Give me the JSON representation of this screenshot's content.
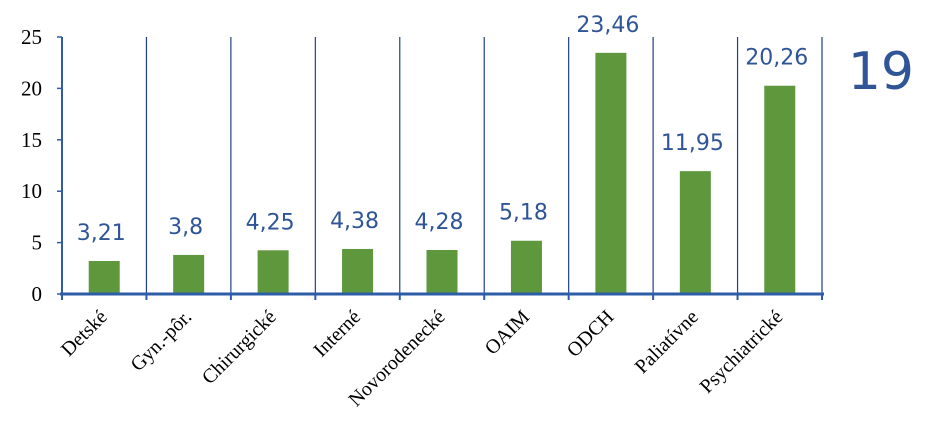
{
  "chart_data": {
    "type": "bar",
    "categories": [
      "Detské",
      "Gyn.-pôr.",
      "Chirurgické",
      "Interné",
      "Novorodenecké",
      "OAIM",
      "ODCH",
      "Paliatívne",
      "Psychiatrické"
    ],
    "values": [
      3.21,
      3.8,
      4.25,
      4.38,
      4.28,
      5.18,
      23.46,
      11.95,
      20.26
    ],
    "data_labels": [
      "3,21",
      "3,8",
      "4,25",
      "4,38",
      "4,28",
      "5,18",
      "23,46",
      "11,95",
      "20,26"
    ],
    "yticks": [
      "0",
      "5",
      "10",
      "15",
      "20",
      "25"
    ],
    "ylim": [
      0,
      25
    ],
    "title": "",
    "xlabel": "",
    "ylabel": "",
    "grid": "vertical category separators",
    "legend": "none",
    "colors": {
      "bar": "#5E973C",
      "data_label": "#2F5597",
      "axis": "#2E5DA7",
      "separator": "#1F3F8F"
    }
  },
  "slide_number": "19",
  "slide_number_color": "#2F5597"
}
